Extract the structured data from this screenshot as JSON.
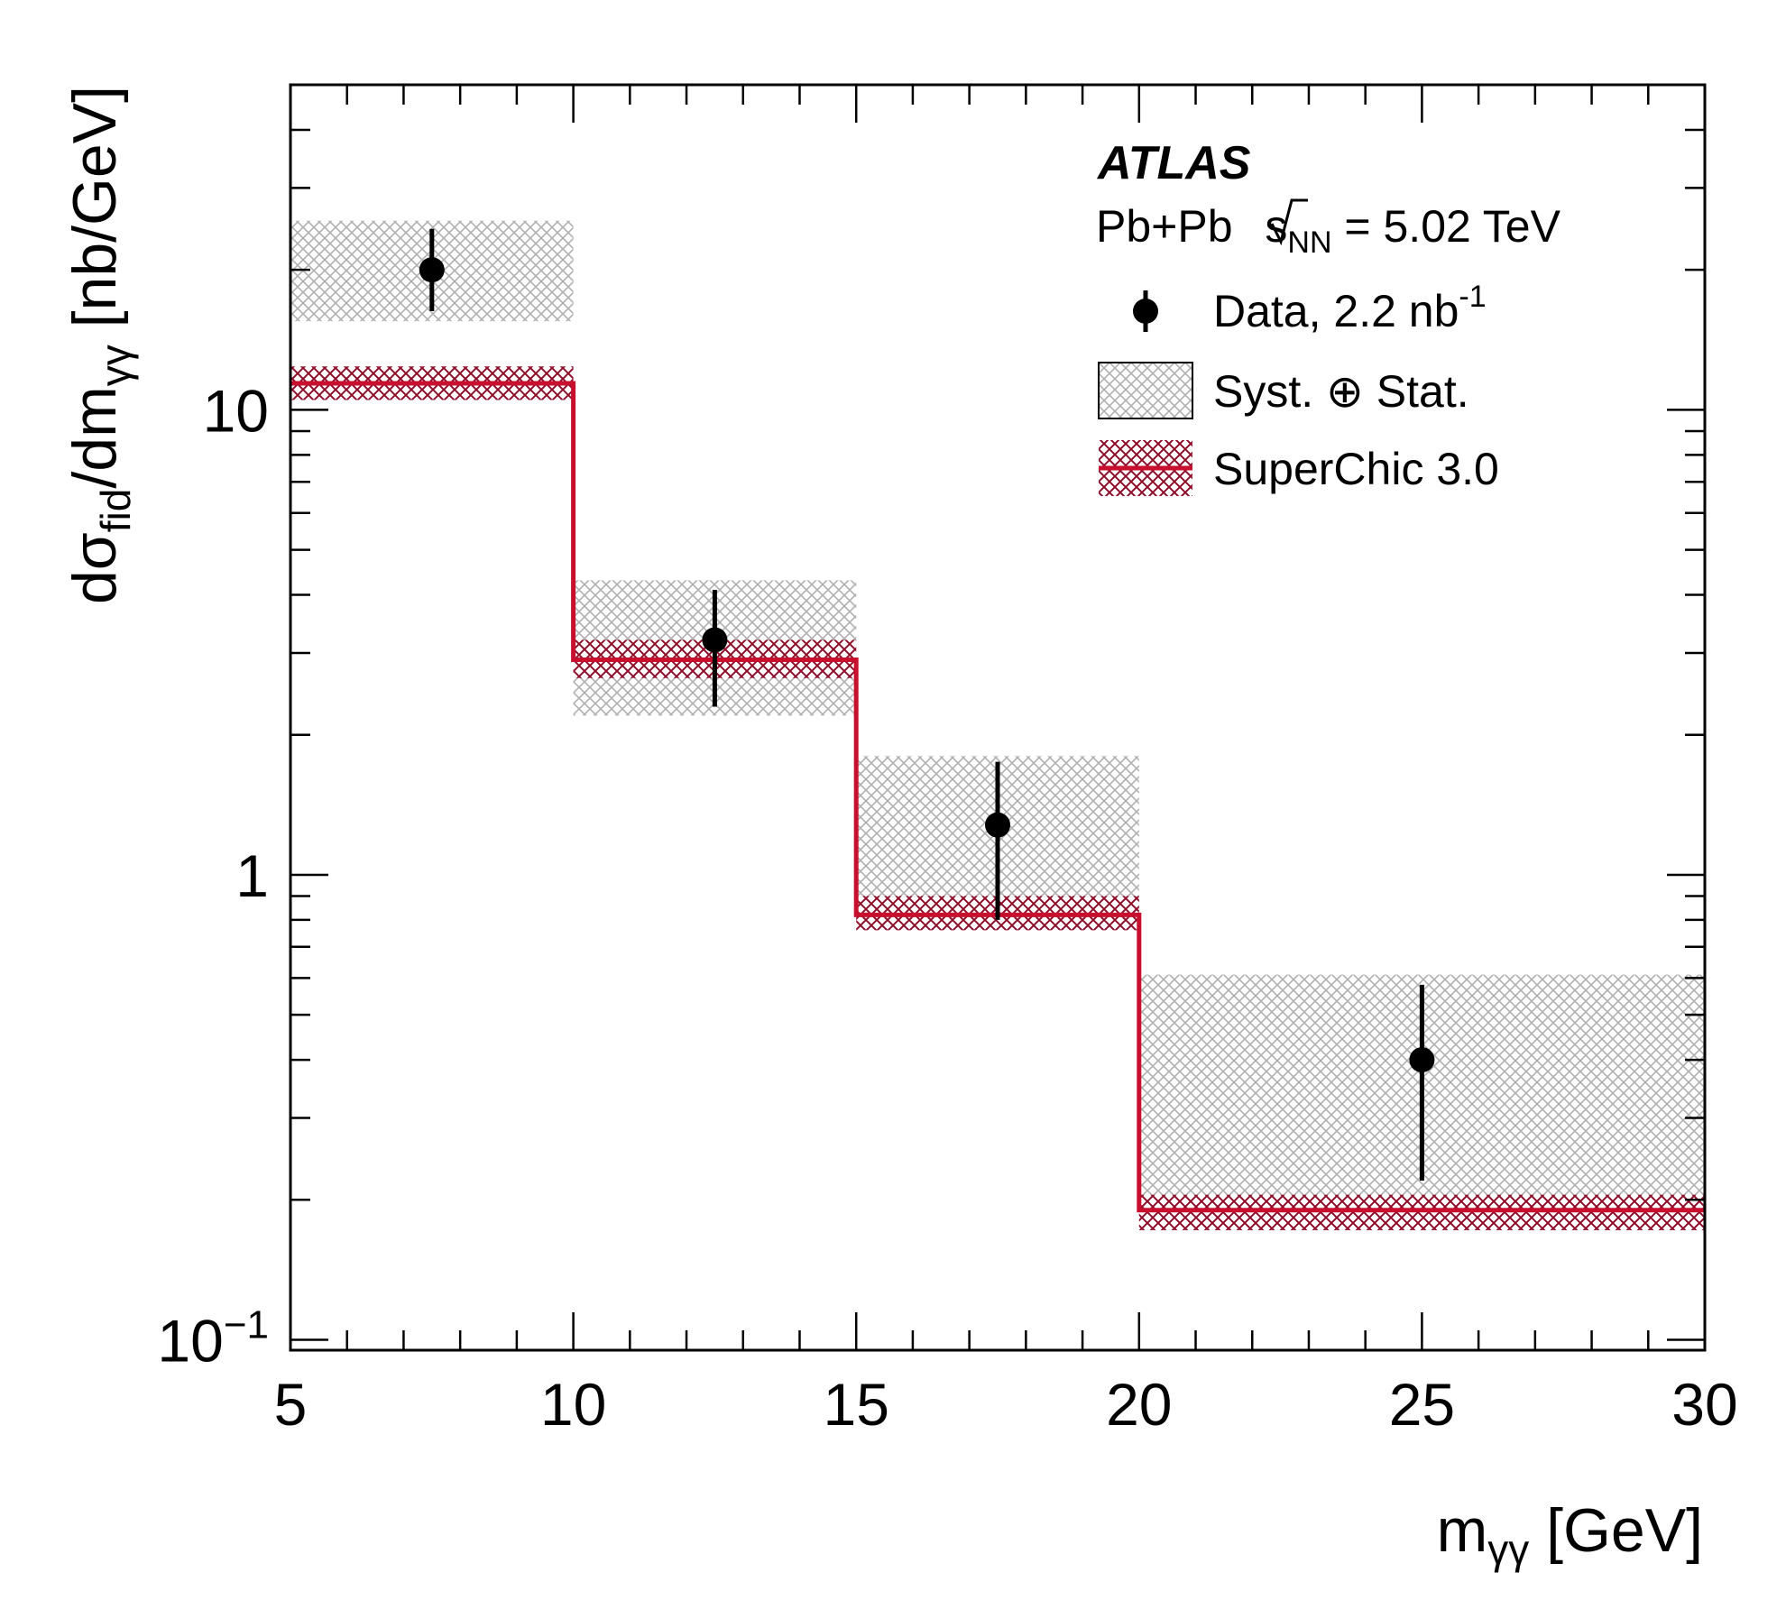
{
  "chart_data": {
    "type": "histogram-with-points",
    "x_axis": {
      "label_main": "m",
      "label_sub": "γγ",
      "label_unit": " [GeV]",
      "range": [
        5,
        30
      ],
      "major_ticks": [
        5,
        10,
        15,
        20,
        25,
        30
      ],
      "minor_step": 1
    },
    "y_axis": {
      "scale": "log",
      "range": [
        0.095,
        50
      ],
      "label_parts": [
        "dσ",
        "fid",
        "/dm",
        "γγ",
        " [nb/GeV]"
      ],
      "major_tick_labels": [
        {
          "value": 0.1,
          "base": "10",
          "exp": "−1"
        },
        {
          "value": 1,
          "base": "1",
          "exp": ""
        },
        {
          "value": 10,
          "base": "10",
          "exp": ""
        }
      ]
    },
    "bins": [
      [
        5,
        10
      ],
      [
        10,
        15
      ],
      [
        15,
        20
      ],
      [
        20,
        30
      ]
    ],
    "series": [
      {
        "name": "Data, 2.2 nb⁻¹",
        "kind": "points",
        "x": [
          7.5,
          12.5,
          17.5,
          25
        ],
        "y": [
          20,
          3.2,
          1.28,
          0.4
        ],
        "err_low": [
          16.3,
          2.3,
          0.8,
          0.22
        ],
        "err_high": [
          24.5,
          4.1,
          1.75,
          0.58
        ]
      },
      {
        "name": "Syst. ⊕ Stat.",
        "kind": "band",
        "low": [
          15.5,
          2.2,
          0.88,
          0.2
        ],
        "high": [
          25.5,
          4.3,
          1.8,
          0.61
        ]
      },
      {
        "name": "SuperChic 3.0",
        "kind": "step",
        "color": "#c8102e",
        "values": [
          11.4,
          2.9,
          0.82,
          0.19
        ],
        "band_low": [
          10.5,
          2.65,
          0.76,
          0.172
        ],
        "band_high": [
          12.4,
          3.2,
          0.9,
          0.205
        ]
      }
    ],
    "legend": {
      "position": "top-right",
      "atlas_label": "ATLAS",
      "energy_prefix": "Pb+Pb ",
      "energy_s": "s",
      "energy_sub": "NN",
      "energy_value": " = 5.02 TeV",
      "data_label": "Data, 2.2 nb",
      "data_label_exp": "-1",
      "band_label": "Syst. ⊕ Stat.",
      "model_label": "SuperChic 3.0"
    },
    "colors": {
      "data": "#000000",
      "syst_band": "#b0b0b0",
      "model": "#c8102e",
      "model_band": "#8e0d2a"
    }
  }
}
